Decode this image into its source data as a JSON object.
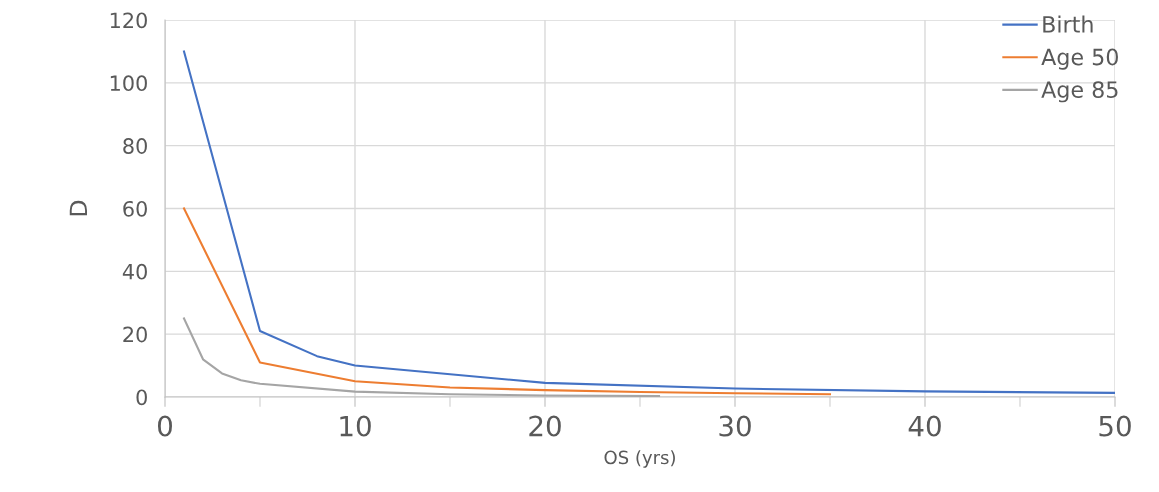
{
  "chart_data": {
    "type": "line",
    "xlabel": "OS (yrs)",
    "ylabel": "D",
    "xlim": [
      0,
      50
    ],
    "xticks": [
      0,
      {
        "value": 5,
        "label": null
      },
      10,
      {
        "value": 15,
        "label": null
      },
      20,
      {
        "value": 25,
        "label": null
      },
      30,
      {
        "value": 35,
        "label": null
      },
      40,
      {
        "value": 45,
        "label": null
      },
      50
    ],
    "ylim": [
      0,
      120
    ],
    "yticks": [
      0,
      20,
      40,
      60,
      80,
      100,
      120
    ],
    "grid": true,
    "legend": "top right",
    "marker": "none",
    "line_style": "solid",
    "series": [
      {
        "name": "Birth",
        "color": "#4472c4",
        "x": [
          1,
          5,
          8,
          10,
          20,
          30,
          40,
          50
        ],
        "values": [
          110,
          21,
          13,
          10,
          4.5,
          2.7,
          1.8,
          1.3
        ]
      },
      {
        "name": "Age 50",
        "color": "#ed7d31",
        "x": [
          1,
          5,
          10,
          15,
          20,
          25,
          30,
          35
        ],
        "values": [
          60,
          11,
          5,
          3,
          2.2,
          1.6,
          1.2,
          0.9
        ]
      },
      {
        "name": "Age 85",
        "color": "#a5a5a5",
        "x": [
          1,
          2,
          3,
          4,
          5,
          10,
          15,
          20,
          26
        ],
        "values": [
          25,
          12,
          7.5,
          5.3,
          4.2,
          1.7,
          0.9,
          0.5,
          0.3
        ]
      }
    ]
  }
}
